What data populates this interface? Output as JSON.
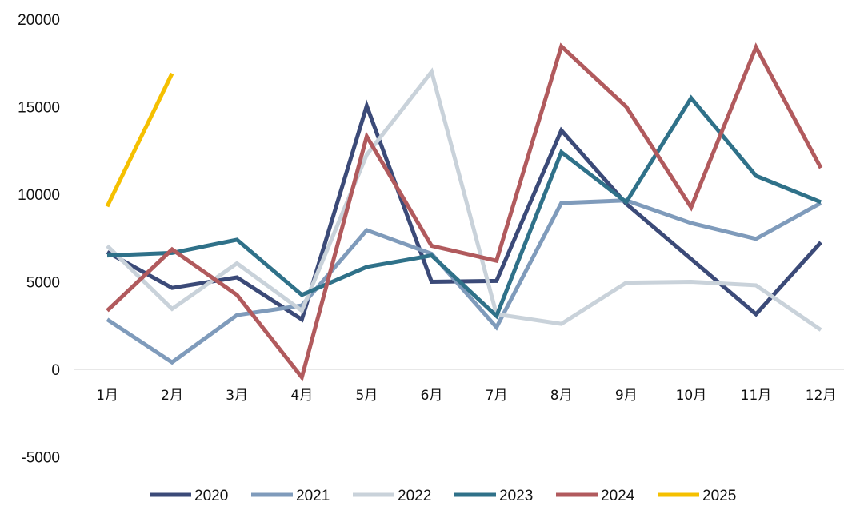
{
  "chart_data": {
    "type": "line",
    "title": "",
    "xlabel": "",
    "ylabel": "",
    "categories": [
      "1月",
      "2月",
      "3月",
      "4月",
      "5月",
      "6月",
      "7月",
      "8月",
      "9月",
      "10月",
      "11月",
      "12月"
    ],
    "y_ticks": [
      "20000",
      "15000",
      "10000",
      "5000",
      "0",
      "-5000"
    ],
    "ylim": [
      -5000,
      20000
    ],
    "grid": false,
    "legend_position": "bottom",
    "series": [
      {
        "name": "2020",
        "color": "#3b4a78",
        "values": [
          6700,
          4650,
          5250,
          2850,
          15050,
          5000,
          5050,
          13650,
          9450,
          6300,
          3150,
          7250
        ]
      },
      {
        "name": "2021",
        "color": "#7f9bbb",
        "values": [
          2850,
          400,
          3100,
          3650,
          7950,
          6600,
          2400,
          9500,
          9650,
          8350,
          7450,
          9500
        ]
      },
      {
        "name": "2022",
        "color": "#c9d2da",
        "values": [
          7050,
          3450,
          6050,
          3350,
          12250,
          17000,
          3150,
          2600,
          4950,
          5000,
          4800,
          2250
        ]
      },
      {
        "name": "2023",
        "color": "#2f7189",
        "values": [
          6500,
          6650,
          7400,
          4250,
          5850,
          6500,
          3050,
          12400,
          9550,
          15500,
          11050,
          9550
        ]
      },
      {
        "name": "2024",
        "color": "#b15a5d",
        "values": [
          3350,
          6850,
          4250,
          -450,
          13300,
          7050,
          6200,
          18450,
          15000,
          9250,
          18400,
          11500
        ]
      },
      {
        "name": "2025",
        "color": "#f5c000",
        "values": [
          9300,
          16900,
          null,
          null,
          null,
          null,
          null,
          null,
          null,
          null,
          null,
          null
        ]
      }
    ]
  }
}
